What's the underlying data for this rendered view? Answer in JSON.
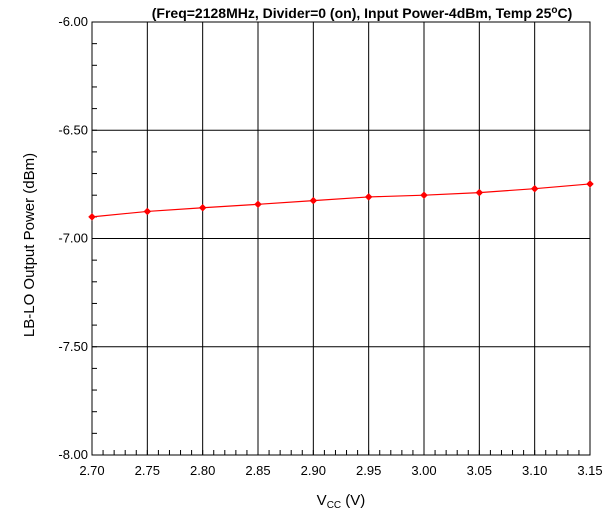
{
  "chart_data": {
    "type": "line",
    "title": {
      "prefix": "(Freq=2128MHz, Divider=0 (on), Input Power-4dBm, Temp 25",
      "superscript": "o",
      "suffix": "C)"
    },
    "ylabel": "LB-LO Output Power (dBm)",
    "xlabel": {
      "main": "V",
      "subscript": "CC",
      "suffix": " (V)"
    },
    "xlim": [
      2.7,
      3.15
    ],
    "ylim": [
      -8.0,
      -6.0
    ],
    "x_ticks": [
      "2.70",
      "2.75",
      "2.80",
      "2.85",
      "2.90",
      "2.95",
      "3.00",
      "3.05",
      "3.10",
      "3.15"
    ],
    "y_ticks": [
      "-6.00",
      "-6.50",
      "-7.00",
      "-7.50",
      "-8.00"
    ],
    "grid": true,
    "series": [
      {
        "color": "#ff0000",
        "x": [
          2.7,
          2.75,
          2.8,
          2.85,
          2.9,
          2.95,
          3.0,
          3.05,
          3.1,
          3.15
        ],
        "y": [
          -6.9,
          -6.875,
          -6.858,
          -6.842,
          -6.825,
          -6.808,
          -6.8,
          -6.788,
          -6.77,
          -6.748
        ]
      }
    ]
  }
}
